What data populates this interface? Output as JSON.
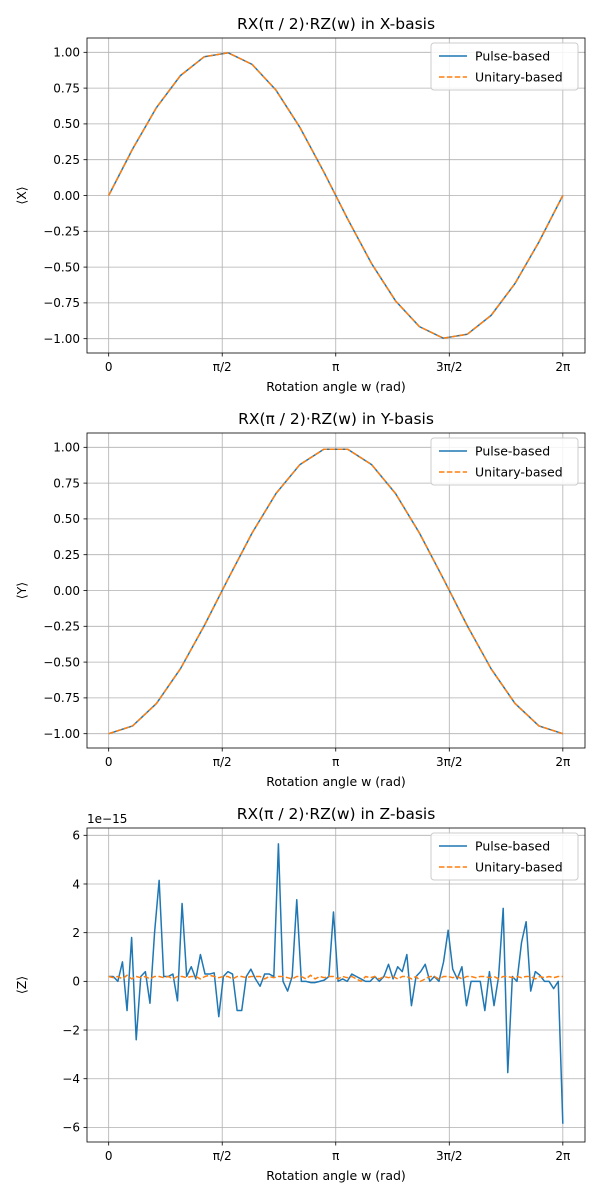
{
  "chart_data": [
    {
      "type": "line",
      "title": "RX(π / 2)·RZ(w) in X-basis",
      "xlabel": "Rotation angle w (rad)",
      "ylabel": "⟨X⟩",
      "xlim": [
        -0.3,
        6.59
      ],
      "ylim": [
        -1.1,
        1.1
      ],
      "x_ticks": [
        0,
        1.5708,
        3.1416,
        4.7124,
        6.2832
      ],
      "x_tick_labels": [
        "0",
        "π/2",
        "π",
        "3π/2",
        "2π"
      ],
      "y_ticks": [
        -1.0,
        -0.75,
        -0.5,
        -0.25,
        0.0,
        0.25,
        0.5,
        0.75,
        1.0
      ],
      "y_tick_labels": [
        "−1.00",
        "−0.75",
        "−0.50",
        "−0.25",
        "0.00",
        "0.25",
        "0.50",
        "0.75",
        "1.00"
      ],
      "grid": true,
      "legend_position": "top-right",
      "x": [
        0,
        0.3307,
        0.6614,
        0.9921,
        1.3228,
        1.6535,
        1.9842,
        2.3149,
        2.6456,
        2.9763,
        3.3069,
        3.6376,
        3.9683,
        4.299,
        4.6297,
        4.9604,
        5.2911,
        5.6218,
        5.9525,
        6.2832
      ],
      "series": [
        {
          "name": "Pulse-based",
          "color": "#1f77b4",
          "style": "solid",
          "values": [
            0,
            0.3247,
            0.6142,
            0.8372,
            0.9694,
            0.9966,
            0.9158,
            0.7357,
            0.4759,
            0.1646,
            -0.1646,
            -0.4759,
            -0.7357,
            -0.9158,
            -0.9966,
            -0.9694,
            -0.8372,
            -0.6142,
            -0.3247,
            0
          ]
        },
        {
          "name": "Unitary-based",
          "color": "#ff7f0e",
          "style": "dashed",
          "values": [
            0,
            0.3247,
            0.6142,
            0.8372,
            0.9694,
            0.9966,
            0.9158,
            0.7357,
            0.4759,
            0.1646,
            -0.1646,
            -0.4759,
            -0.7357,
            -0.9158,
            -0.9966,
            -0.9694,
            -0.8372,
            -0.6142,
            -0.3247,
            0
          ]
        }
      ]
    },
    {
      "type": "line",
      "title": "RX(π / 2)·RZ(w) in Y-basis",
      "xlabel": "Rotation angle w (rad)",
      "ylabel": "⟨Y⟩",
      "xlim": [
        -0.3,
        6.59
      ],
      "ylim": [
        -1.1,
        1.1
      ],
      "x_ticks": [
        0,
        1.5708,
        3.1416,
        4.7124,
        6.2832
      ],
      "x_tick_labels": [
        "0",
        "π/2",
        "π",
        "3π/2",
        "2π"
      ],
      "y_ticks": [
        -1.0,
        -0.75,
        -0.5,
        -0.25,
        0.0,
        0.25,
        0.5,
        0.75,
        1.0
      ],
      "y_tick_labels": [
        "−1.00",
        "−0.75",
        "−0.50",
        "−0.25",
        "0.00",
        "0.25",
        "0.50",
        "0.75",
        "1.00"
      ],
      "grid": true,
      "legend_position": "top-right",
      "x": [
        0,
        0.3307,
        0.6614,
        0.9921,
        1.3228,
        1.6535,
        1.9842,
        2.3149,
        2.6456,
        2.9763,
        3.3069,
        3.6376,
        3.9683,
        4.299,
        4.6297,
        4.9604,
        5.2911,
        5.6218,
        5.9525,
        6.2832
      ],
      "series": [
        {
          "name": "Pulse-based",
          "color": "#1f77b4",
          "style": "solid",
          "values": [
            -1,
            -0.9458,
            -0.7891,
            -0.5469,
            -0.2455,
            0.0826,
            0.4017,
            0.6773,
            0.8795,
            0.9864,
            0.9864,
            0.8795,
            0.6773,
            0.4017,
            0.0826,
            -0.2455,
            -0.5469,
            -0.7891,
            -0.9458,
            -1
          ]
        },
        {
          "name": "Unitary-based",
          "color": "#ff7f0e",
          "style": "dashed",
          "values": [
            -1,
            -0.9458,
            -0.7891,
            -0.5469,
            -0.2455,
            0.0826,
            0.4017,
            0.6773,
            0.8795,
            0.9864,
            0.9864,
            0.8795,
            0.6773,
            0.4017,
            0.0826,
            -0.2455,
            -0.5469,
            -0.7891,
            -0.9458,
            -1
          ]
        }
      ]
    },
    {
      "type": "line",
      "title": "RX(π / 2)·RZ(w) in Z-basis",
      "xlabel": "Rotation angle w (rad)",
      "ylabel": "⟨Z⟩",
      "offset_text": "1e−15",
      "xlim": [
        -0.3,
        6.59
      ],
      "ylim": [
        -6.6,
        6.3
      ],
      "x_ticks": [
        0,
        1.5708,
        3.1416,
        4.7124,
        6.2832
      ],
      "x_tick_labels": [
        "0",
        "π/2",
        "π",
        "3π/2",
        "2π"
      ],
      "y_ticks": [
        -6,
        -4,
        -2,
        0,
        2,
        4,
        6
      ],
      "y_tick_labels": [
        "−6",
        "−4",
        "−2",
        "0",
        "2",
        "4",
        "6"
      ],
      "grid": true,
      "legend_position": "top-right",
      "x": [
        0,
        0.0635,
        0.1269,
        0.1904,
        0.2539,
        0.3173,
        0.3808,
        0.4443,
        0.5077,
        0.5712,
        0.6347,
        0.6981,
        0.7616,
        0.8251,
        0.8885,
        0.952,
        1.0155,
        1.0789,
        1.1424,
        1.2059,
        1.2693,
        1.3328,
        1.3963,
        1.4597,
        1.5232,
        1.5867,
        1.6501,
        1.7136,
        1.7771,
        1.8405,
        1.904,
        1.9675,
        2.0309,
        2.0944,
        2.1579,
        2.2213,
        2.2848,
        2.3483,
        2.4117,
        2.4752,
        2.5387,
        2.6021,
        2.6656,
        2.7291,
        2.7925,
        2.856,
        2.9195,
        2.9829,
        3.0464,
        3.1099,
        3.1733,
        3.2368,
        3.3003,
        3.3637,
        3.4272,
        3.4907,
        3.5541,
        3.6176,
        3.6811,
        3.7445,
        3.808,
        3.8715,
        3.9349,
        3.9984,
        4.0619,
        4.1253,
        4.1888,
        4.2523,
        4.3157,
        4.3792,
        4.4427,
        4.5061,
        4.5696,
        4.6331,
        4.6965,
        4.76,
        4.8235,
        4.8869,
        4.9504,
        5.0139,
        5.0773,
        5.1408,
        5.2043,
        5.2677,
        5.3312,
        5.3947,
        5.4581,
        5.5216,
        5.5851,
        5.6485,
        5.712,
        5.7755,
        5.8389,
        5.9024,
        5.9659,
        6.0293,
        6.0928,
        6.1563,
        6.2197,
        6.2832
      ],
      "series": [
        {
          "name": "Pulse-based",
          "color": "#1f77b4",
          "style": "solid",
          "values": [
            0.2,
            0.2,
            0,
            0.8,
            -1.2,
            1.8,
            -2.4,
            0.2,
            0.4,
            -0.9,
            2.0,
            4.15,
            0.2,
            0.2,
            0.3,
            -0.8,
            3.2,
            0.2,
            0.6,
            0.1,
            1.1,
            0.3,
            0.3,
            0.35,
            -1.45,
            0.2,
            0.4,
            0.3,
            -1.2,
            -1.2,
            0.2,
            0.5,
            0.1,
            -0.2,
            0.3,
            0.3,
            0.2,
            5.65,
            0,
            -0.4,
            0.2,
            3.35,
            0,
            0,
            -0.05,
            -0.05,
            0,
            0.05,
            0.2,
            2.85,
            0,
            0.1,
            0,
            0.3,
            0.2,
            0.1,
            0,
            0,
            0.2,
            0,
            0.2,
            0.7,
            0.1,
            0.6,
            0.4,
            1.1,
            -1.0,
            0.2,
            0.4,
            0.7,
            0,
            0.2,
            0,
            0.8,
            2.1,
            0.5,
            0.1,
            0.6,
            -1.0,
            0,
            0,
            0,
            -1.2,
            0.4,
            -1.0,
            0.2,
            3.0,
            -3.75,
            0.2,
            0,
            1.6,
            2.45,
            -0.4,
            0.4,
            0.25,
            0,
            0,
            -0.3,
            0,
            -5.85
          ]
        },
        {
          "name": "Unitary-based",
          "color": "#ff7f0e",
          "style": "dashed",
          "values": [
            0.2,
            0.15,
            0.2,
            0.1,
            0.25,
            0.1,
            0.2,
            0.15,
            0.2,
            0.1,
            0.2,
            0.2,
            0.15,
            0.2,
            0.1,
            0.2,
            0.2,
            0.15,
            0.2,
            0.2,
            0.1,
            0.2,
            0.25,
            0.2,
            0.15,
            0.2,
            0.2,
            0.1,
            0.2,
            0.2,
            0.15,
            0.2,
            0.2,
            0.2,
            0.1,
            0.2,
            0.15,
            0.2,
            0.2,
            0.15,
            0.1,
            0.2,
            0.2,
            0.1,
            0.25,
            0.1,
            0.2,
            0.15,
            0.2,
            0.2,
            0.1,
            0.2,
            0.15,
            0.2,
            0.1,
            0,
            0.2,
            0.15,
            0.2,
            0.1,
            0.2,
            0.15,
            0.2,
            0.1,
            0.2,
            0.2,
            0.1,
            0.2,
            0,
            0.1,
            0.2,
            0.2,
            0.1,
            0.2,
            0.2,
            0.15,
            0.2,
            0.1,
            0.2,
            0.2,
            0.15,
            0.2,
            0.2,
            0.15,
            0.2,
            0.1,
            0.2,
            0.2,
            0.15,
            0.2,
            0.15,
            0.2,
            0.2,
            0.1,
            0.2,
            0.15,
            0.2,
            0.15,
            0.2,
            0.2
          ]
        }
      ]
    }
  ]
}
